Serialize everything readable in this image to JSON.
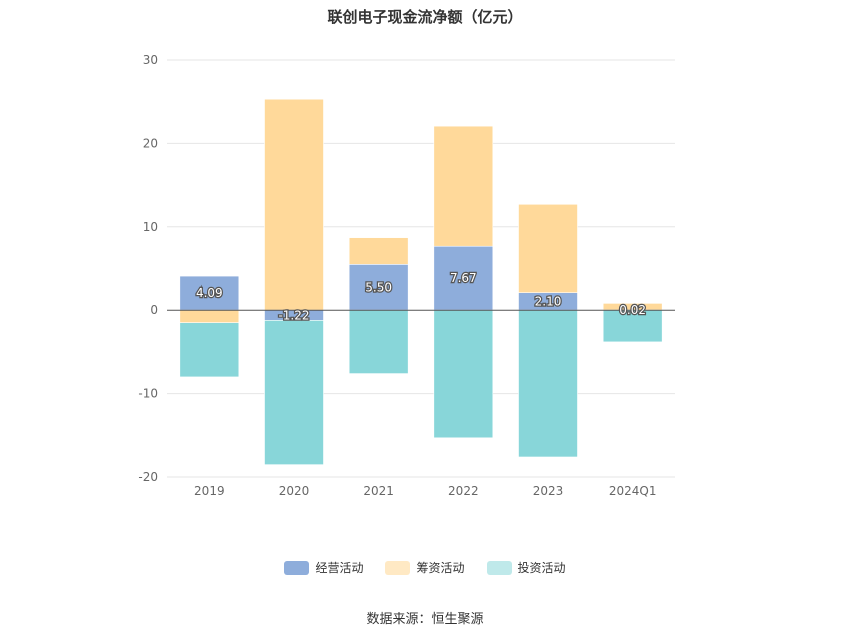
{
  "chart_data": {
    "type": "bar",
    "title": "联创电子现金流净额（亿元）",
    "categories": [
      "2019",
      "2020",
      "2021",
      "2022",
      "2023",
      "2024Q1"
    ],
    "series": [
      {
        "name": "经营活动",
        "color": "#8eaddb",
        "values": [
          4.09,
          -1.22,
          5.5,
          7.67,
          2.1,
          0.02
        ]
      },
      {
        "name": "筹资活动",
        "color": "#ffd99a",
        "values": [
          -1.5,
          25.3,
          3.2,
          14.4,
          10.6,
          0.8
        ]
      },
      {
        "name": "投资活动",
        "color": "#88d6d9",
        "values": [
          -6.5,
          -17.3,
          -7.6,
          -15.3,
          -17.6,
          -3.8
        ]
      }
    ],
    "data_labels": [
      "4.09",
      "-1.22",
      "5.50",
      "7.67",
      "2.10",
      "0.02"
    ],
    "y_ticks": [
      "30",
      "20",
      "10",
      "0",
      "-10",
      "-20"
    ],
    "ylim": [
      -20,
      30
    ],
    "grid": true,
    "legend_position": "bottom",
    "xlabel": "",
    "ylabel": ""
  },
  "source": "数据来源：恒生聚源"
}
